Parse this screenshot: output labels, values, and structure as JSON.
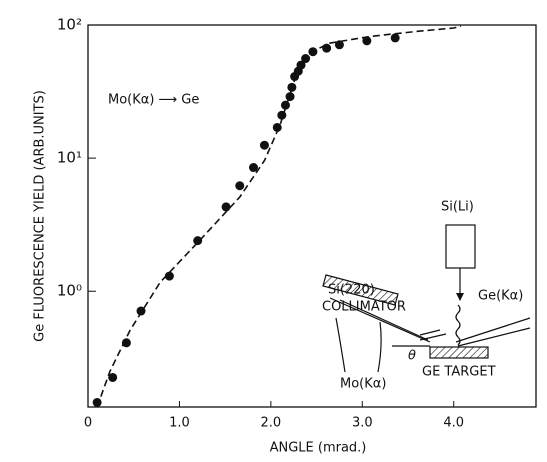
{
  "chart_data": {
    "type": "scatter",
    "x_label": "ANGLE (mrad.)",
    "y_label": "Ge FLUORESCENCE YIELD (ARB.UNITS)",
    "log_y": true,
    "xlim": [
      0,
      4.9
    ],
    "ylim": [
      0.135,
      100
    ],
    "xticks": [
      0,
      {
        "value": 1,
        "label": "1.0"
      },
      {
        "value": 2,
        "label": "2.0"
      },
      {
        "value": 3,
        "label": "3.0"
      },
      {
        "value": 4,
        "label": "4.0"
      }
    ],
    "yticks": [
      {
        "value": 1,
        "label": "10⁰"
      },
      {
        "value": 10,
        "label": "10¹"
      },
      {
        "value": 100,
        "label": "10²"
      }
    ],
    "series": [
      {
        "style": "markers",
        "color": "#111111",
        "x": [
          0.1,
          0.27,
          0.42,
          0.58,
          0.89,
          1.2,
          1.51,
          1.66,
          1.81,
          1.93,
          2.07,
          2.12,
          2.16,
          2.21,
          2.23,
          2.26,
          2.3,
          2.33,
          2.38,
          2.46,
          2.61,
          2.75,
          3.05,
          3.36
        ],
        "values": [
          0.146,
          0.225,
          0.41,
          0.71,
          1.3,
          2.4,
          4.3,
          6.2,
          8.5,
          12.5,
          17,
          21,
          25,
          29,
          34,
          41,
          45,
          50,
          56,
          63,
          67,
          71,
          76,
          80
        ]
      },
      {
        "style": "dashed",
        "color": "#111111",
        "x": [
          0.1,
          0.24,
          0.46,
          0.79,
          1.22,
          1.66,
          1.93,
          2.1,
          2.26,
          2.43,
          2.64,
          3.08,
          3.63,
          4.0,
          4.08
        ],
        "values": [
          0.135,
          0.25,
          0.51,
          1.17,
          2.4,
          5.1,
          9.6,
          17.7,
          38.6,
          62,
          73,
          82,
          90,
          95,
          98
        ]
      }
    ],
    "annotations": [
      "Mo(Kα) ⟶ Ge",
      "Si(Li)",
      "Si(220)",
      "COLLIMATOR",
      "Ge(Kα)",
      "Mo(Kα)",
      "θ",
      "GE TARGET"
    ]
  }
}
